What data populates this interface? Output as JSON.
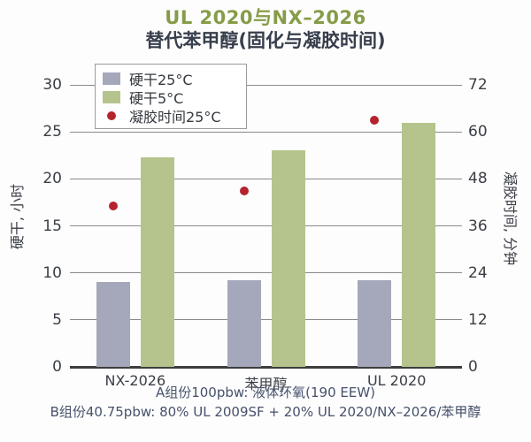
{
  "title": "UL 2020与NX–2026",
  "subtitle": "替代苯甲醇(固化与凝胶时间)",
  "colors": {
    "title_green": "#869c48",
    "subtitle_dark": "#373e4c",
    "bar_gray": "#a5a7ba",
    "bar_green": "#b4c48c",
    "dot_red": "#b4232e",
    "grid": "#8a8a8a",
    "axis": "#3d3d3d",
    "footer_navy": "#46516b"
  },
  "legend": {
    "items": [
      {
        "label": "硬干25°C",
        "swatch": "bar_gray"
      },
      {
        "label": "硬干5°C",
        "swatch": "bar_green"
      },
      {
        "label": "凝胶时间25°C",
        "swatch": "dot_red"
      }
    ]
  },
  "chart_data": {
    "type": "bar",
    "categories": [
      "NX-2026",
      "苯甲醇",
      "UL 2020"
    ],
    "series": [
      {
        "name": "硬干25°C",
        "type": "bar",
        "axis": "left",
        "color_key": "bar_gray",
        "values": [
          9.0,
          9.2,
          9.2
        ]
      },
      {
        "name": "硬干5°C",
        "type": "bar",
        "axis": "left",
        "color_key": "bar_green",
        "values": [
          22.3,
          23.0,
          26.0
        ]
      },
      {
        "name": "凝胶时间25°C",
        "type": "scatter",
        "axis": "right",
        "color_key": "dot_red",
        "values": [
          41,
          45,
          63
        ]
      }
    ],
    "left_axis": {
      "label": "硬干, 小时",
      "min": 0,
      "max": 30,
      "ticks": [
        0,
        5,
        10,
        15,
        20,
        25,
        30
      ]
    },
    "right_axis": {
      "label": "凝胶时间, 分钟",
      "min": 0,
      "max": 72,
      "ticks": [
        0,
        12,
        24,
        36,
        48,
        60,
        72
      ]
    },
    "grid": true,
    "legend_position": "top-left-inside"
  },
  "footer": {
    "line1": "A组份100pbw: 液体环氧(190 EEW)",
    "line2": "B组份40.75pbw: 80% UL 2009SF + 20% UL 2020/NX–2026/苯甲醇"
  }
}
